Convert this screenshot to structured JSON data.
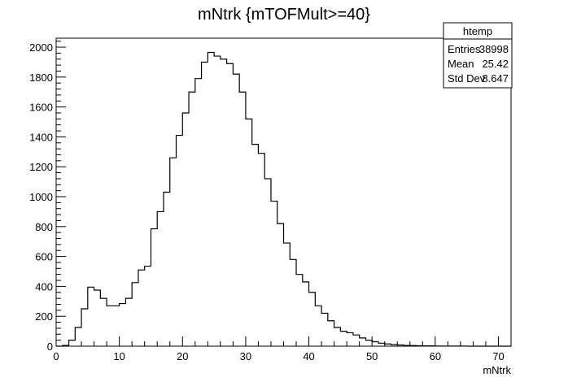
{
  "chart_data": {
    "type": "histogram",
    "title": "mNtrk {mTOFMult>=40}",
    "xlabel": "mNtrk",
    "ylabel": "",
    "xlim": [
      0,
      72
    ],
    "ylim": [
      0,
      2060
    ],
    "x_ticks": [
      0,
      10,
      20,
      30,
      40,
      50,
      60,
      70
    ],
    "y_ticks": [
      0,
      200,
      400,
      600,
      800,
      1000,
      1200,
      1400,
      1600,
      1800,
      2000
    ],
    "bin_width": 1,
    "bin_start": 0,
    "values": [
      0,
      5,
      40,
      125,
      250,
      395,
      375,
      320,
      270,
      270,
      285,
      320,
      425,
      510,
      535,
      785,
      900,
      1030,
      1260,
      1410,
      1560,
      1700,
      1790,
      1900,
      1965,
      1940,
      1920,
      1890,
      1820,
      1700,
      1520,
      1350,
      1290,
      1120,
      970,
      820,
      690,
      580,
      480,
      430,
      360,
      270,
      220,
      170,
      125,
      100,
      90,
      75,
      55,
      40,
      30,
      20,
      15,
      10,
      8,
      5,
      4,
      3,
      2,
      2,
      1,
      1,
      1,
      1,
      1,
      0,
      0,
      0,
      0,
      0,
      0,
      0
    ],
    "stats_box": {
      "name": "htemp",
      "rows": [
        {
          "label": "Entries",
          "value": "38998"
        },
        {
          "label": "Mean",
          "value": "25.42"
        },
        {
          "label": "Std Dev",
          "value": "8.647"
        }
      ]
    }
  }
}
